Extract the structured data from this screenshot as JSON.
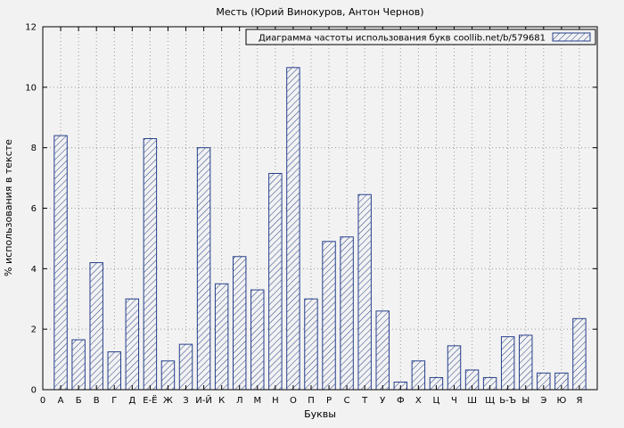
{
  "title": "Месть (Юрий Винокуров, Антон Чернов)",
  "legend": "Диаграмма частоты использования букв coollib.net/b/579681",
  "axes": {
    "y_label": "% использования в тексте",
    "x_label": "Буквы",
    "origin_label": "0"
  },
  "colors": {
    "bar": "#27408B",
    "grid": "#9a9a9a",
    "bg": "#f2f2f2",
    "axis": "#000000"
  },
  "chart_data": {
    "type": "bar",
    "title": "Месть (Юрий Винокуров, Антон Чернов)",
    "xlabel": "Буквы",
    "ylabel": "% использования в тексте",
    "legend_label": "Диаграмма частоты использования букв coollib.net/b/579681",
    "legend_position": "top-right",
    "grid": true,
    "ylim": [
      0,
      12
    ],
    "yticks": [
      0,
      2,
      4,
      6,
      8,
      10,
      12
    ],
    "categories": [
      "А",
      "Б",
      "В",
      "Г",
      "Д",
      "Е-Ё",
      "Ж",
      "З",
      "И-Й",
      "К",
      "Л",
      "М",
      "Н",
      "О",
      "П",
      "Р",
      "С",
      "Т",
      "У",
      "Ф",
      "Х",
      "Ц",
      "Ч",
      "Ш",
      "Щ",
      "Ь-Ъ",
      "Ы",
      "Э",
      "Ю",
      "Я"
    ],
    "values": [
      8.4,
      1.65,
      4.2,
      1.25,
      3.0,
      8.3,
      0.95,
      1.5,
      8.0,
      3.5,
      4.4,
      3.3,
      7.15,
      10.65,
      3.0,
      4.9,
      5.05,
      6.45,
      2.6,
      0.25,
      0.95,
      0.4,
      1.45,
      0.65,
      0.4,
      1.75,
      1.8,
      0.55,
      0.55,
      2.35
    ]
  }
}
